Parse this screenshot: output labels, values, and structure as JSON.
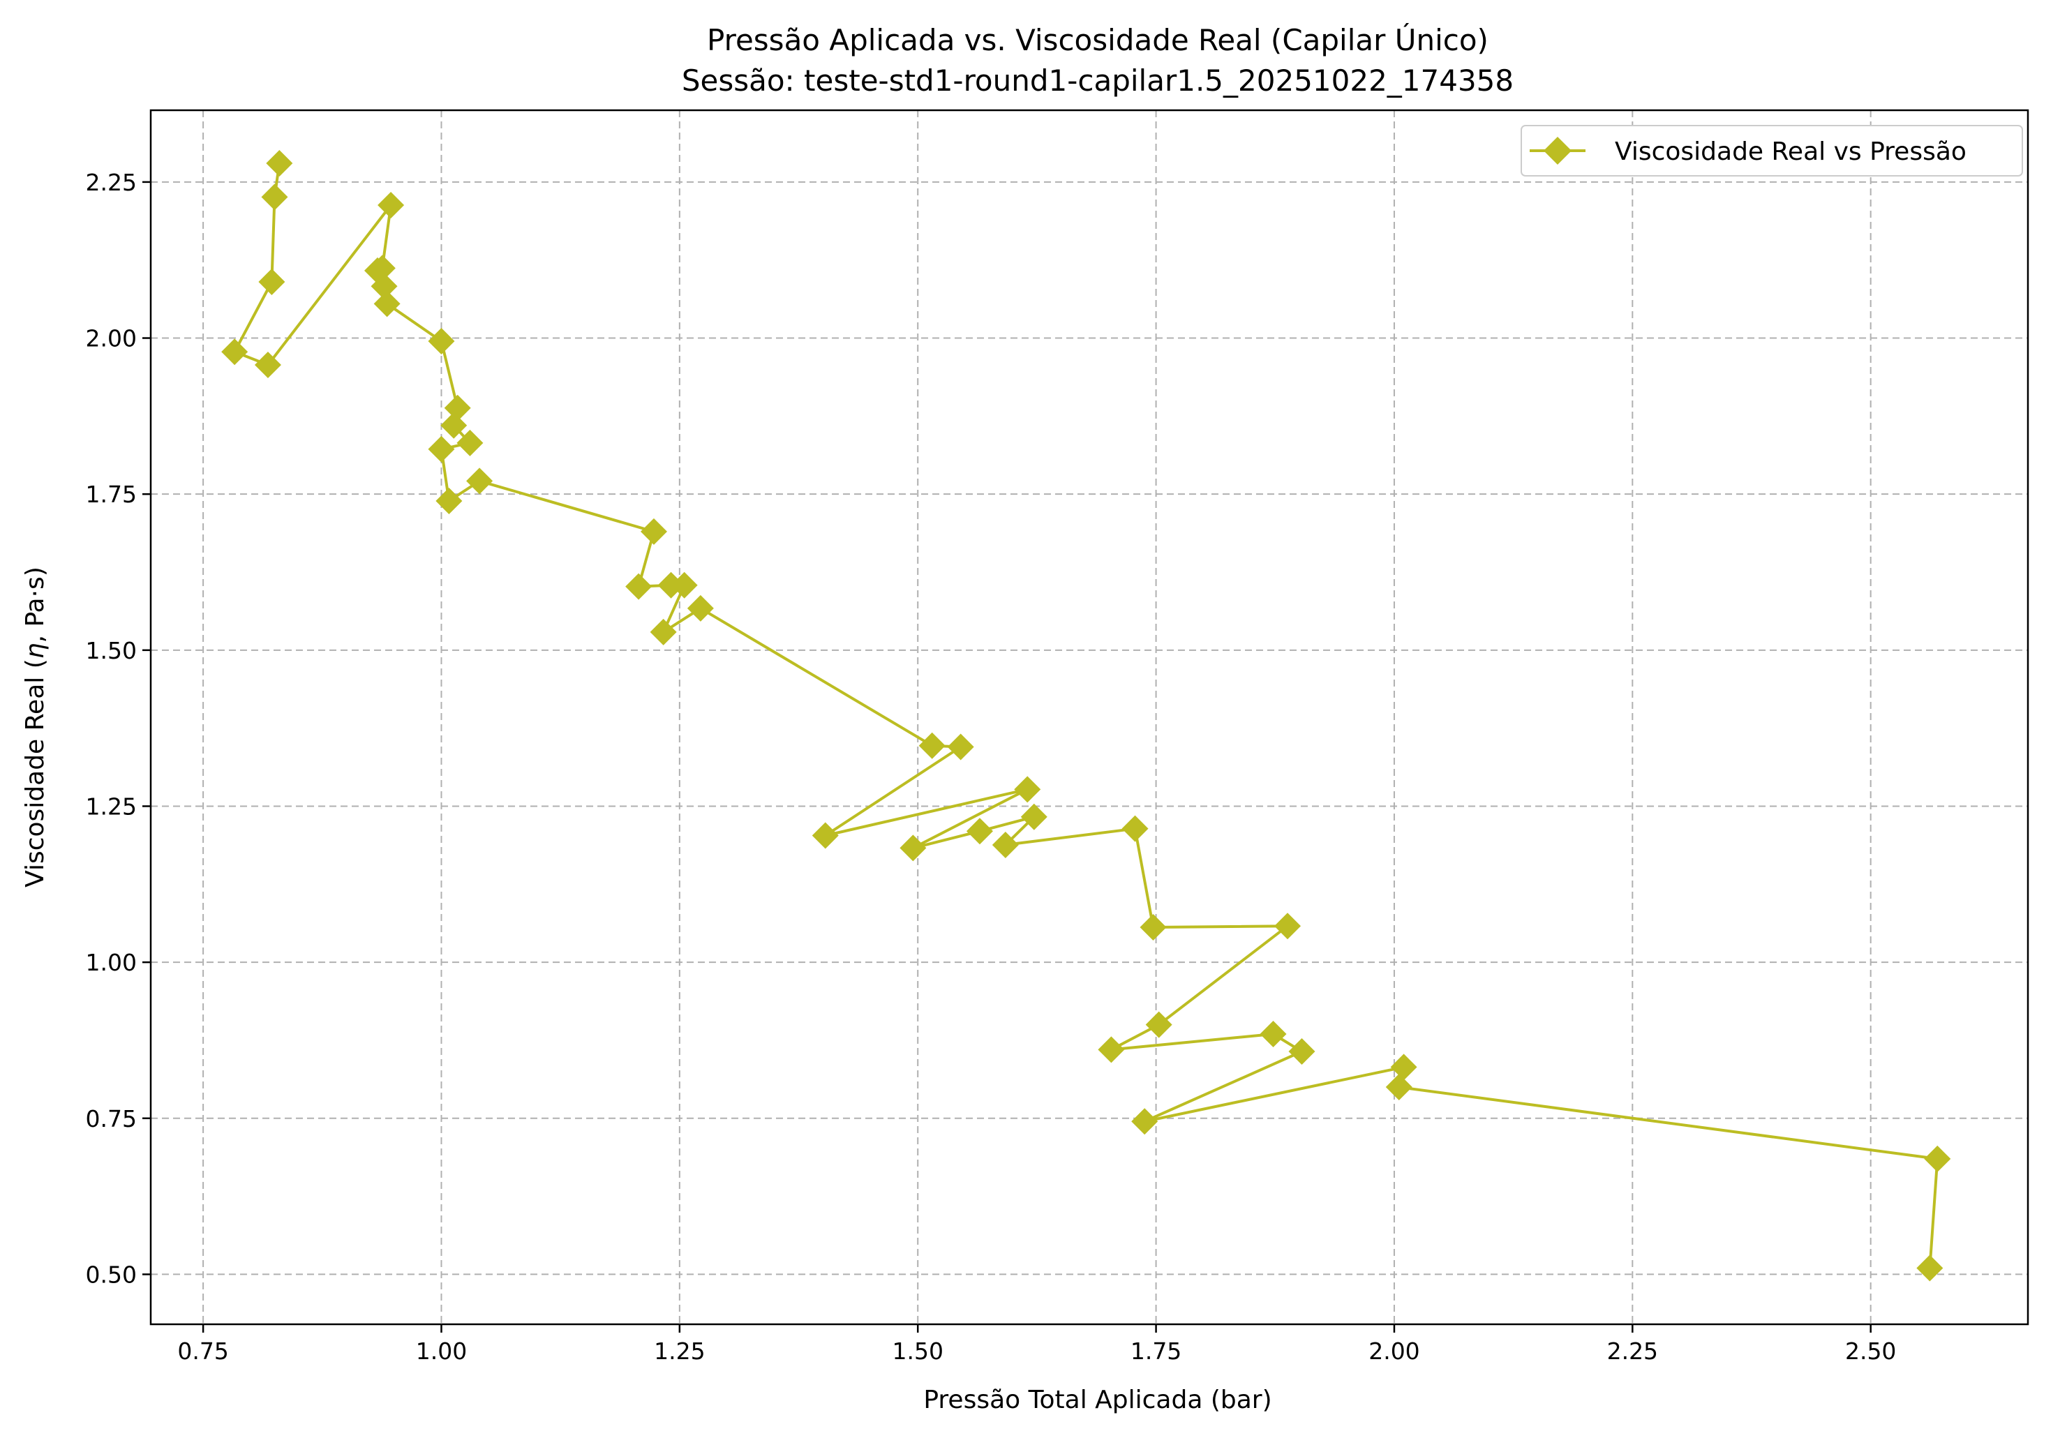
{
  "chart_data": {
    "type": "line",
    "title": "Pressão Aplicada vs. Viscosidade Real (Capilar Único)",
    "subtitle": "Sessão: teste-std1-round1-capilar1.5_20251022_174358",
    "xlabel": "Pressão Total Aplicada (bar)",
    "ylabel_prefix": "Viscosidade Real (",
    "ylabel_symbol": "η",
    "ylabel_suffix": ", Pa·s)",
    "xlim": [
      0.695,
      2.665
    ],
    "ylim": [
      0.42,
      2.365
    ],
    "x_ticks": [
      0.75,
      1.0,
      1.25,
      1.5,
      1.75,
      2.0,
      2.25,
      2.5
    ],
    "x_tick_labels": [
      "0.75",
      "1.00",
      "1.25",
      "1.50",
      "1.75",
      "2.00",
      "2.25",
      "2.50"
    ],
    "y_ticks": [
      0.5,
      0.75,
      1.0,
      1.25,
      1.5,
      1.75,
      2.0,
      2.25
    ],
    "y_tick_labels": [
      "0.50",
      "0.75",
      "1.00",
      "1.25",
      "1.50",
      "1.75",
      "2.00",
      "2.25"
    ],
    "grid": true,
    "legend_position": "top-right",
    "series": [
      {
        "name": "Viscosidade Real vs Pressão",
        "color": "#bcbd22",
        "marker": "diamond",
        "x": [
          0.83,
          0.825,
          0.822,
          0.783,
          0.818,
          0.947,
          0.938,
          0.933,
          0.94,
          0.943,
          1.0,
          1.017,
          1.013,
          1.03,
          1.0,
          1.008,
          1.04,
          1.223,
          1.207,
          1.241,
          1.255,
          1.233,
          1.272,
          1.515,
          1.545,
          1.403,
          1.615,
          1.495,
          1.565,
          1.622,
          1.592,
          1.728,
          1.747,
          1.888,
          1.753,
          1.703,
          1.873,
          1.903,
          1.738,
          2.01,
          2.005,
          2.57,
          2.562
        ],
        "y": [
          2.28,
          2.226,
          2.09,
          1.978,
          1.957,
          2.213,
          2.112,
          2.108,
          2.083,
          2.055,
          1.995,
          1.888,
          1.86,
          1.832,
          1.822,
          1.739,
          1.771,
          1.69,
          1.602,
          1.604,
          1.604,
          1.529,
          1.567,
          1.347,
          1.345,
          1.203,
          1.277,
          1.183,
          1.21,
          1.233,
          1.188,
          1.214,
          1.056,
          1.058,
          0.9,
          0.86,
          0.885,
          0.857,
          0.745,
          0.832,
          0.8,
          0.685,
          0.51
        ]
      }
    ]
  }
}
